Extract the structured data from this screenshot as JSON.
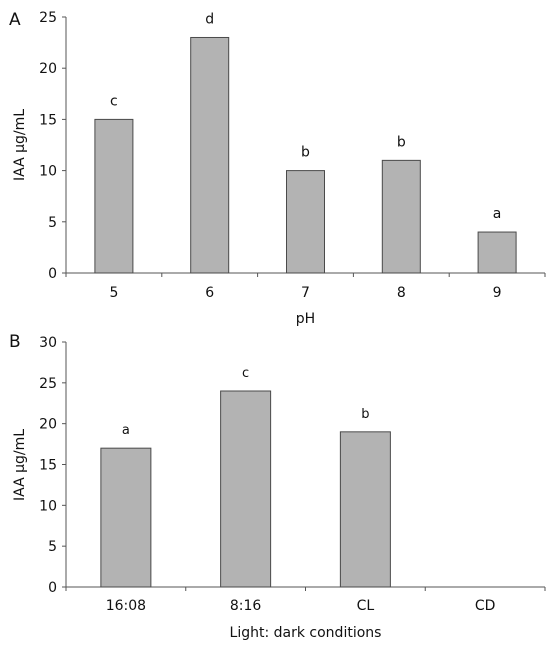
{
  "chart_data": [
    {
      "panel": "A",
      "type": "bar",
      "categories": [
        "5",
        "6",
        "7",
        "8",
        "9"
      ],
      "values": [
        15,
        23,
        10,
        11,
        4
      ],
      "significance_letters": [
        "c",
        "d",
        "b",
        "b",
        "a"
      ],
      "xlabel": "pH",
      "ylabel": "IAA µg/mL",
      "ylim": [
        0,
        25
      ],
      "yticks": [
        "0",
        "5",
        "10",
        "15",
        "20",
        "25"
      ],
      "grid": false,
      "bar_color": "#b3b3b3",
      "bar_edge_color": "#4a4a4a"
    },
    {
      "panel": "B",
      "type": "bar",
      "categories": [
        "16:08",
        "8:16",
        "CL",
        "CD"
      ],
      "values": [
        17,
        24,
        19,
        0
      ],
      "significance_letters": [
        "a",
        "c",
        "b",
        ""
      ],
      "xlabel": "Light: dark conditions",
      "ylabel": "IAA µg/mL",
      "ylim": [
        0,
        30
      ],
      "yticks": [
        "0",
        "5",
        "10",
        "15",
        "20",
        "25",
        "30"
      ],
      "grid": false,
      "bar_color": "#b3b3b3",
      "bar_edge_color": "#4a4a4a"
    }
  ]
}
